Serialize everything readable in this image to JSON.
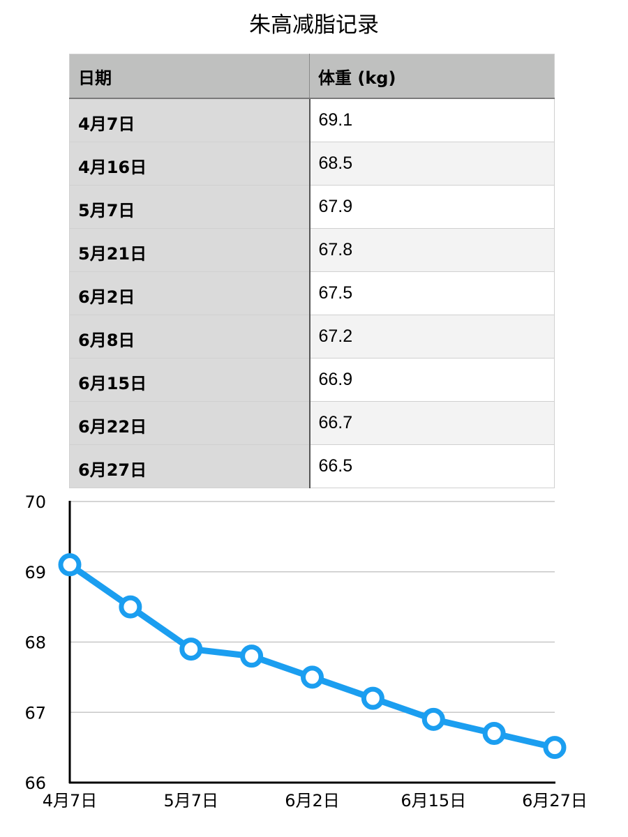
{
  "table": {
    "title": "朱高减脂记录",
    "headers": [
      "日期",
      "体重 (kg)"
    ],
    "rows": [
      {
        "date": "4月7日",
        "weight": "69.1"
      },
      {
        "date": "4月16日",
        "weight": "68.5"
      },
      {
        "date": "5月7日",
        "weight": "67.9"
      },
      {
        "date": "5月21日",
        "weight": "67.8"
      },
      {
        "date": "6月2日",
        "weight": "67.5"
      },
      {
        "date": "6月8日",
        "weight": "67.2"
      },
      {
        "date": "6月15日",
        "weight": "66.9"
      },
      {
        "date": "6月22日",
        "weight": "66.7"
      },
      {
        "date": "6月27日",
        "weight": "66.5"
      }
    ]
  },
  "chart_data": {
    "type": "line",
    "categories": [
      "4月7日",
      "4月16日",
      "5月7日",
      "5月21日",
      "6月2日",
      "6月8日",
      "6月15日",
      "6月22日",
      "6月27日"
    ],
    "x_tick_labels": [
      "4月7日",
      "",
      "5月7日",
      "",
      "6月2日",
      "",
      "6月15日",
      "",
      "6月27日"
    ],
    "series": [
      {
        "values": [
          69.1,
          68.5,
          67.9,
          67.8,
          67.5,
          67.2,
          66.9,
          66.7,
          66.5
        ]
      }
    ],
    "ylim": [
      66,
      70
    ],
    "yticks": [
      66,
      67,
      68,
      69,
      70
    ],
    "grid": true,
    "colors": {
      "series": "#1b9ef0",
      "grid": "#c7c7c7",
      "axis": "#000000"
    }
  }
}
